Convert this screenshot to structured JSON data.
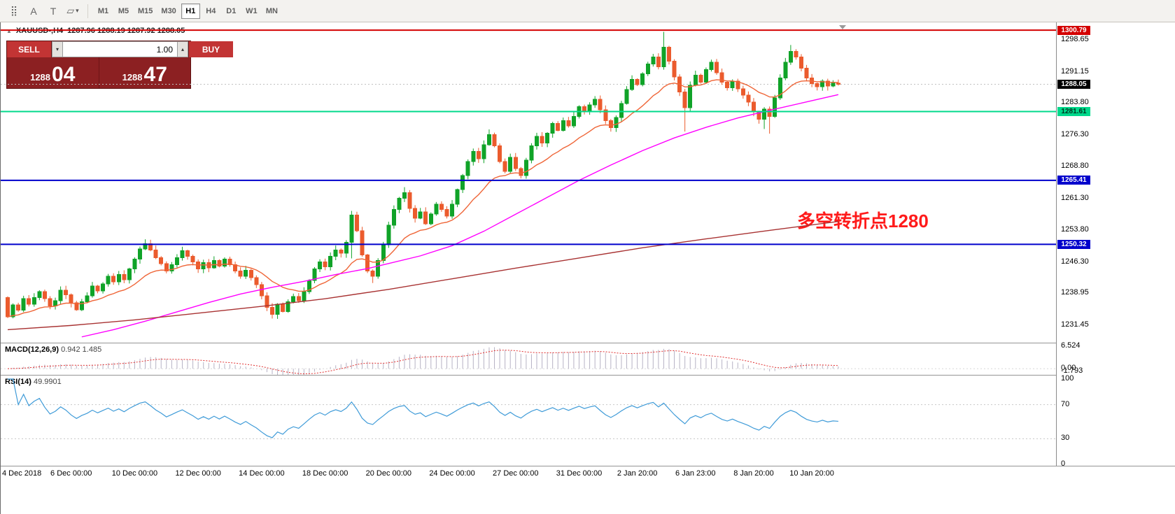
{
  "toolbar": {
    "icons": [
      {
        "name": "cursor-grid-icon",
        "glyph": "⣿"
      },
      {
        "name": "text-label-icon",
        "glyph": "A"
      },
      {
        "name": "text-box-icon",
        "glyph": "T"
      },
      {
        "name": "shapes-icon",
        "glyph": "▱",
        "dropdown": "▾"
      }
    ],
    "timeframes": [
      "M1",
      "M5",
      "M15",
      "M30",
      "H1",
      "H4",
      "D1",
      "W1",
      "MN"
    ],
    "active_timeframe": "H1"
  },
  "chart": {
    "toggle_glyph": "▲",
    "symbol_period": "XAUUSD-,H4",
    "ohlc": "1287.96 1288.19 1287.92 1288.05"
  },
  "trade_panel": {
    "sell_label": "SELL",
    "buy_label": "BUY",
    "volume": "1.00",
    "volume_down_glyph": "▾",
    "volume_up_glyph": "▴",
    "sell_price_main": "1288",
    "sell_price_pips": "04",
    "buy_price_main": "1288",
    "buy_price_pips": "47"
  },
  "annotation": {
    "text": "多空转折点1280",
    "color": "#ff1a1a"
  },
  "indicators": {
    "macd": {
      "label": "MACD(12,26,9)",
      "values": "0.942 1.485",
      "ticks": [
        "6.524",
        "0.00",
        "-1.793"
      ]
    },
    "rsi": {
      "label": "RSI(14)",
      "value": "49.9901",
      "ticks": [
        "100",
        "70",
        "30",
        "0"
      ]
    }
  },
  "chart_data": {
    "type": "candlestick",
    "symbol": "XAUUSD",
    "timeframe": "H4",
    "x_step": 7.56,
    "first_open": 1237.8,
    "closes": [
      1233.2,
      1236.0,
      1234.8,
      1237.5,
      1236.2,
      1237.8,
      1239.2,
      1237.5,
      1235.8,
      1237.0,
      1239.5,
      1238.4,
      1236.5,
      1234.9,
      1236.8,
      1238.2,
      1240.5,
      1239.3,
      1241.0,
      1242.8,
      1241.5,
      1243.2,
      1242.0,
      1244.5,
      1246.8,
      1249.2,
      1250.5,
      1249.0,
      1247.2,
      1245.8,
      1244.0,
      1245.5,
      1247.2,
      1248.8,
      1247.5,
      1246.2,
      1244.5,
      1246.0,
      1244.8,
      1246.5,
      1245.2,
      1246.8,
      1245.5,
      1244.0,
      1242.8,
      1244.2,
      1242.5,
      1240.8,
      1238.2,
      1235.5,
      1233.8,
      1236.2,
      1234.5,
      1236.8,
      1238.0,
      1237.0,
      1239.2,
      1241.8,
      1244.5,
      1246.2,
      1245.0,
      1247.5,
      1249.0,
      1248.2,
      1250.8,
      1257.2,
      1253.5,
      1247.8,
      1244.0,
      1242.8,
      1246.5,
      1250.2,
      1254.8,
      1258.5,
      1261.2,
      1262.5,
      1258.8,
      1256.5,
      1258.0,
      1255.2,
      1257.5,
      1259.8,
      1258.5,
      1257.0,
      1259.8,
      1263.2,
      1266.5,
      1269.8,
      1272.2,
      1270.5,
      1273.8,
      1276.2,
      1273.5,
      1269.8,
      1267.5,
      1270.8,
      1268.2,
      1266.5,
      1270.2,
      1273.5,
      1275.8,
      1274.2,
      1276.5,
      1278.8,
      1277.2,
      1279.5,
      1278.2,
      1280.5,
      1282.8,
      1281.5,
      1283.2,
      1284.5,
      1282.0,
      1279.5,
      1277.8,
      1280.2,
      1283.5,
      1286.8,
      1289.2,
      1288.0,
      1290.5,
      1292.8,
      1294.5,
      1292.2,
      1296.8,
      1293.5,
      1289.8,
      1286.2,
      1282.5,
      1287.8,
      1290.2,
      1288.5,
      1291.5,
      1293.2,
      1290.8,
      1288.5,
      1287.2,
      1288.8,
      1287.0,
      1285.5,
      1283.8,
      1281.5,
      1279.8,
      1282.2,
      1280.5,
      1284.8,
      1289.5,
      1293.2,
      1295.8,
      1294.5,
      1291.8,
      1289.5,
      1288.2,
      1287.5,
      1288.8,
      1287.6,
      1288.3,
      1288.05
    ],
    "wick_overrides": {
      "26": [
        1251.5,
        null
      ],
      "65": [
        1258.2,
        1247.0
      ],
      "69": [
        null,
        1241.2
      ],
      "75": [
        1263.8,
        null
      ],
      "91": [
        1277.4,
        null
      ],
      "124": [
        1300.4,
        null
      ],
      "128": [
        null,
        1276.9
      ],
      "143": [
        null,
        1277.5
      ],
      "144": [
        null,
        1276.4
      ],
      "148": [
        1297.3,
        null
      ]
    },
    "y_axis": {
      "max": 1302.3,
      "min": 1227.47,
      "ticks": [
        "1298.65",
        "1291.15",
        "1283.80",
        "1276.30",
        "1268.80",
        "1261.30",
        "1253.80",
        "1246.30",
        "1238.95",
        "1231.45"
      ]
    },
    "x_labels": [
      [
        0,
        "4 Dec 2018"
      ],
      [
        12,
        "6 Dec 00:00"
      ],
      [
        24,
        "10 Dec 00:00"
      ],
      [
        36,
        "12 Dec 00:00"
      ],
      [
        48,
        "14 Dec 00:00"
      ],
      [
        60,
        "18 Dec 00:00"
      ],
      [
        72,
        "20 Dec 00:00"
      ],
      [
        84,
        "24 Dec 00:00"
      ],
      [
        96,
        "27 Dec 00:00"
      ],
      [
        108,
        "31 Dec 00:00"
      ],
      [
        119,
        "2 Jan 20:00"
      ],
      [
        130,
        "6 Jan 23:00"
      ],
      [
        141,
        "8 Jan 20:00"
      ],
      [
        152,
        "10 Jan 20:00"
      ]
    ],
    "h_lines": [
      {
        "price": 1300.79,
        "color": "#d40000",
        "label_bg": "#d40000",
        "label_fg": "#ffffff",
        "width": 2
      },
      {
        "price": 1281.61,
        "color": "#00d98b",
        "label_bg": "#00d98b",
        "label_fg": "#00331f",
        "width": 2
      },
      {
        "price": 1265.41,
        "color": "#0000cc",
        "label_bg": "#0000cc",
        "label_fg": "#ffffff",
        "width": 2
      },
      {
        "price": 1250.32,
        "color": "#0000cc",
        "label_bg": "#0000cc",
        "label_fg": "#ffffff",
        "width": 2
      }
    ],
    "current_price": {
      "price": 1288.05,
      "label_bg": "#000000",
      "label_fg": "#ffffff"
    },
    "colors": {
      "up": "#10a328",
      "down": "#eb5b2d"
    },
    "ma_fast": {
      "period": 16,
      "color": "#ef6537"
    },
    "ma_lines": [
      {
        "name": "ma-mid",
        "color": "#ff00ff",
        "points": [
          [
            14,
            1228.5
          ],
          [
            20,
            1230.2
          ],
          [
            26,
            1232.2
          ],
          [
            32,
            1234.4
          ],
          [
            38,
            1236.6
          ],
          [
            44,
            1238.6
          ],
          [
            50,
            1240.2
          ],
          [
            56,
            1241.6
          ],
          [
            62,
            1243.2
          ],
          [
            68,
            1244.6
          ],
          [
            72,
            1245.8
          ],
          [
            78,
            1247.6
          ],
          [
            84,
            1250.0
          ],
          [
            90,
            1253.4
          ],
          [
            96,
            1257.4
          ],
          [
            102,
            1261.4
          ],
          [
            108,
            1265.4
          ],
          [
            114,
            1269.0
          ],
          [
            120,
            1272.4
          ],
          [
            126,
            1275.4
          ],
          [
            132,
            1277.9
          ],
          [
            138,
            1280.1
          ],
          [
            144,
            1281.9
          ],
          [
            150,
            1283.6
          ],
          [
            157,
            1285.6
          ]
        ]
      },
      {
        "name": "ma-slow",
        "color": "#a83232",
        "points": [
          [
            0,
            1230.2
          ],
          [
            12,
            1231.2
          ],
          [
            24,
            1232.5
          ],
          [
            36,
            1234.1
          ],
          [
            48,
            1235.7
          ],
          [
            60,
            1237.5
          ],
          [
            72,
            1239.7
          ],
          [
            84,
            1242.2
          ],
          [
            96,
            1244.7
          ],
          [
            108,
            1247.1
          ],
          [
            120,
            1249.5
          ],
          [
            132,
            1251.6
          ],
          [
            144,
            1253.6
          ],
          [
            157,
            1255.7
          ]
        ]
      }
    ],
    "macd": {
      "fast": 12,
      "slow": 26,
      "signal": 9,
      "max": 7.4,
      "min": -2.0,
      "bar_color": "#b6b2c4",
      "signal_color": "#e03030"
    },
    "rsi": {
      "period": 14,
      "color": "#3f9bd8",
      "levels": [
        70,
        30
      ]
    }
  }
}
